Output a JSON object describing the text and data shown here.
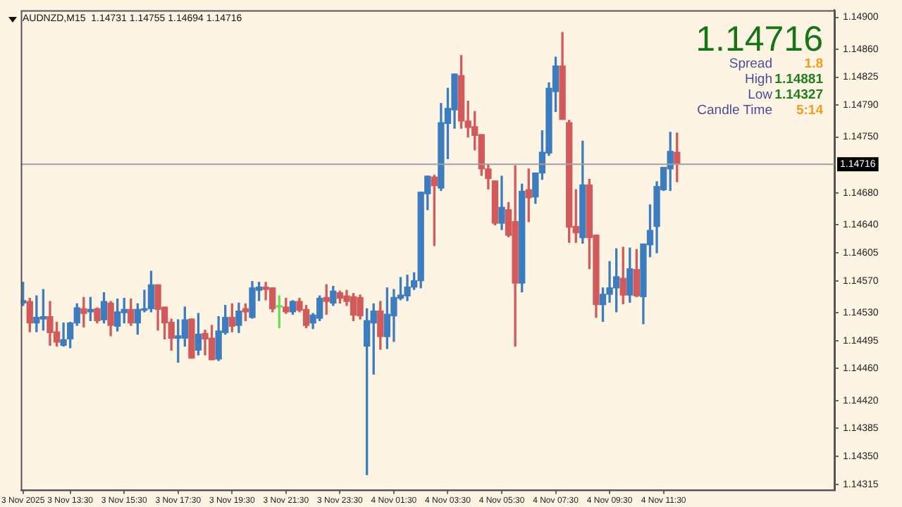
{
  "chart_data": {
    "type": "candlestick",
    "title": "AUDNZD,M15  1.14731 1.14755 1.14694 1.14716",
    "x": [
      "2025-11-03T11:45",
      "2025-11-03T12:00",
      "2025-11-03T12:15",
      "2025-11-03T12:30",
      "2025-11-03T12:45",
      "2025-11-03T13:00",
      "2025-11-03T13:15",
      "2025-11-03T13:30",
      "2025-11-03T13:45",
      "2025-11-03T14:00",
      "2025-11-03T14:15",
      "2025-11-03T14:30",
      "2025-11-03T14:45",
      "2025-11-03T15:00",
      "2025-11-03T15:15",
      "2025-11-03T15:30",
      "2025-11-03T15:45",
      "2025-11-03T16:00",
      "2025-11-03T16:15",
      "2025-11-03T16:30",
      "2025-11-03T16:45",
      "2025-11-03T17:00",
      "2025-11-03T17:15",
      "2025-11-03T17:30",
      "2025-11-03T17:45",
      "2025-11-03T18:00",
      "2025-11-03T18:15",
      "2025-11-03T18:30",
      "2025-11-03T18:45",
      "2025-11-03T19:00",
      "2025-11-03T19:15",
      "2025-11-03T19:30",
      "2025-11-03T19:45",
      "2025-11-03T20:00",
      "2025-11-03T20:15",
      "2025-11-03T20:30",
      "2025-11-03T20:45",
      "2025-11-03T21:00",
      "2025-11-03T21:15",
      "2025-11-03T21:30",
      "2025-11-03T21:45",
      "2025-11-03T22:00",
      "2025-11-03T22:15",
      "2025-11-03T22:30",
      "2025-11-03T22:45",
      "2025-11-03T23:00",
      "2025-11-03T23:15",
      "2025-11-03T23:30",
      "2025-11-03T23:45",
      "2025-11-04T00:00",
      "2025-11-04T00:15",
      "2025-11-04T00:30",
      "2025-11-04T00:45",
      "2025-11-04T01:00",
      "2025-11-04T01:15",
      "2025-11-04T01:30",
      "2025-11-04T01:45",
      "2025-11-04T02:00",
      "2025-11-04T02:15",
      "2025-11-04T02:30",
      "2025-11-04T02:45",
      "2025-11-04T03:00",
      "2025-11-04T03:15",
      "2025-11-04T03:30",
      "2025-11-04T03:45",
      "2025-11-04T04:00",
      "2025-11-04T04:15",
      "2025-11-04T04:30",
      "2025-11-04T04:45",
      "2025-11-04T05:00",
      "2025-11-04T05:15",
      "2025-11-04T05:30",
      "2025-11-04T05:45",
      "2025-11-04T06:00",
      "2025-11-04T06:15",
      "2025-11-04T06:30",
      "2025-11-04T06:45",
      "2025-11-04T07:00",
      "2025-11-04T07:15",
      "2025-11-04T07:30",
      "2025-11-04T07:45",
      "2025-11-04T08:00",
      "2025-11-04T08:15",
      "2025-11-04T08:30",
      "2025-11-04T08:45",
      "2025-11-04T09:00",
      "2025-11-04T09:15",
      "2025-11-04T09:30",
      "2025-11-04T09:45",
      "2025-11-04T10:00",
      "2025-11-04T10:15",
      "2025-11-04T10:30",
      "2025-11-04T10:45",
      "2025-11-04T11:00",
      "2025-11-04T11:15",
      "2025-11-04T11:30",
      "2025-11-04T11:45",
      "2025-11-04T12:00"
    ],
    "ohlc": [
      [
        1.14542,
        1.14568,
        1.14539,
        1.14545
      ],
      [
        1.14544,
        1.14548,
        1.14506,
        1.14517
      ],
      [
        1.14517,
        1.14551,
        1.14506,
        1.14524
      ],
      [
        1.14522,
        1.14559,
        1.14508,
        1.14525
      ],
      [
        1.14525,
        1.14544,
        1.14489,
        1.14505
      ],
      [
        1.14506,
        1.14518,
        1.14488,
        1.14493
      ],
      [
        1.14489,
        1.14517,
        1.14488,
        1.14496
      ],
      [
        1.14497,
        1.14518,
        1.14486,
        1.14517
      ],
      [
        1.14517,
        1.14541,
        1.14514,
        1.14536
      ],
      [
        1.14535,
        1.14549,
        1.14512,
        1.14529
      ],
      [
        1.14531,
        1.14549,
        1.1452,
        1.14534
      ],
      [
        1.14535,
        1.14536,
        1.14517,
        1.1452
      ],
      [
        1.14521,
        1.14555,
        1.14517,
        1.14544
      ],
      [
        1.14542,
        1.14544,
        1.14501,
        1.14514
      ],
      [
        1.14513,
        1.14547,
        1.14507,
        1.14531
      ],
      [
        1.1453,
        1.14548,
        1.14517,
        1.14534
      ],
      [
        1.14534,
        1.14547,
        1.14514,
        1.14517
      ],
      [
        1.14517,
        1.14541,
        1.14503,
        1.14534
      ],
      [
        1.14533,
        1.14558,
        1.14531,
        1.14535
      ],
      [
        1.14535,
        1.14582,
        1.14531,
        1.14565
      ],
      [
        1.14565,
        1.14565,
        1.14508,
        1.14534
      ],
      [
        1.14537,
        1.14537,
        1.14497,
        1.14517
      ],
      [
        1.14518,
        1.14522,
        1.14483,
        1.14498
      ],
      [
        1.14498,
        1.14521,
        1.14468,
        1.14501
      ],
      [
        1.14498,
        1.14537,
        1.14488,
        1.14521
      ],
      [
        1.14522,
        1.14522,
        1.14473,
        1.14473
      ],
      [
        1.14483,
        1.14529,
        1.14477,
        1.14503
      ],
      [
        1.14504,
        1.14508,
        1.14477,
        1.14497
      ],
      [
        1.14498,
        1.14514,
        1.14471,
        1.14471
      ],
      [
        1.14472,
        1.14525,
        1.1447,
        1.14507
      ],
      [
        1.14505,
        1.14539,
        1.14503,
        1.14524
      ],
      [
        1.14524,
        1.14541,
        1.14506,
        1.14513
      ],
      [
        1.14514,
        1.14542,
        1.14505,
        1.14532
      ],
      [
        1.14535,
        1.14541,
        1.1452,
        1.14531
      ],
      [
        1.14524,
        1.14569,
        1.14523,
        1.14561
      ],
      [
        1.14558,
        1.14568,
        1.14545,
        1.14562
      ],
      [
        1.14562,
        1.14568,
        1.14546,
        1.14559
      ],
      [
        1.14561,
        1.14561,
        1.14531,
        1.14535
      ],
      [
        1.14537,
        1.14551,
        1.14511,
        1.14537
      ],
      [
        1.14537,
        1.14548,
        1.14529,
        1.14531
      ],
      [
        1.14531,
        1.14545,
        1.14528,
        1.14544
      ],
      [
        1.14544,
        1.14548,
        1.14531,
        1.14533
      ],
      [
        1.14534,
        1.14539,
        1.14511,
        1.14514
      ],
      [
        1.14517,
        1.14529,
        1.1451,
        1.14527
      ],
      [
        1.14523,
        1.14551,
        1.1452,
        1.14548
      ],
      [
        1.14549,
        1.14565,
        1.14528,
        1.14544
      ],
      [
        1.14542,
        1.14563,
        1.14539,
        1.14557
      ],
      [
        1.14555,
        1.14557,
        1.14542,
        1.14548
      ],
      [
        1.14551,
        1.14558,
        1.14539,
        1.14544
      ],
      [
        1.1455,
        1.14554,
        1.1452,
        1.14527
      ],
      [
        1.14549,
        1.14552,
        1.14522,
        1.14526
      ],
      [
        1.14488,
        1.14535,
        1.14327,
        1.1452
      ],
      [
        1.14517,
        1.14541,
        1.14453,
        1.14532
      ],
      [
        1.14532,
        1.14544,
        1.14484,
        1.145
      ],
      [
        1.145,
        1.14561,
        1.14485,
        1.14528
      ],
      [
        1.14526,
        1.14559,
        1.14494,
        1.14549
      ],
      [
        1.14548,
        1.14574,
        1.14546,
        1.14552
      ],
      [
        1.14551,
        1.14577,
        1.14545,
        1.14562
      ],
      [
        1.14562,
        1.1458,
        1.14559,
        1.1457
      ],
      [
        1.1457,
        1.14681,
        1.14561,
        1.14681
      ],
      [
        1.14679,
        1.14701,
        1.14659,
        1.14701
      ],
      [
        1.147,
        1.14702,
        1.14614,
        1.14689
      ],
      [
        1.14686,
        1.14792,
        1.14683,
        1.14768
      ],
      [
        1.14767,
        1.14811,
        1.14723,
        1.14786
      ],
      [
        1.14784,
        1.14829,
        1.14761,
        1.14829
      ],
      [
        1.14827,
        1.14852,
        1.14761,
        1.1477
      ],
      [
        1.1477,
        1.14795,
        1.1475,
        1.14762
      ],
      [
        1.14763,
        1.14782,
        1.14734,
        1.14752
      ],
      [
        1.14753,
        1.14753,
        1.14702,
        1.1471
      ],
      [
        1.1471,
        1.14715,
        1.14685,
        1.14698
      ],
      [
        1.14695,
        1.14695,
        1.1464,
        1.14642
      ],
      [
        1.14642,
        1.14701,
        1.14634,
        1.14662
      ],
      [
        1.14659,
        1.14668,
        1.14625,
        1.14627
      ],
      [
        1.14644,
        1.14714,
        1.14488,
        1.14567
      ],
      [
        1.14567,
        1.14691,
        1.14556,
        1.14682
      ],
      [
        1.14684,
        1.1471,
        1.14644,
        1.14674
      ],
      [
        1.14675,
        1.14705,
        1.14667,
        1.14705
      ],
      [
        1.14705,
        1.14758,
        1.14697,
        1.14731
      ],
      [
        1.1473,
        1.14818,
        1.14727,
        1.14811
      ],
      [
        1.14807,
        1.1485,
        1.14782,
        1.14839
      ],
      [
        1.14839,
        1.14881,
        1.14772,
        1.14772
      ],
      [
        1.14768,
        1.14771,
        1.14618,
        1.14637
      ],
      [
        1.14638,
        1.14684,
        1.14618,
        1.1463
      ],
      [
        1.14624,
        1.14745,
        1.14617,
        1.1469
      ],
      [
        1.1469,
        1.14697,
        1.14585,
        1.14624
      ],
      [
        1.14627,
        1.14627,
        1.14524,
        1.1454
      ],
      [
        1.1454,
        1.14561,
        1.14519,
        1.14553
      ],
      [
        1.14553,
        1.14594,
        1.14543,
        1.14561
      ],
      [
        1.14561,
        1.1461,
        1.14531,
        1.14575
      ],
      [
        1.14573,
        1.14612,
        1.14541,
        1.14552
      ],
      [
        1.14552,
        1.14611,
        1.14543,
        1.14585
      ],
      [
        1.14584,
        1.14609,
        1.1455,
        1.14551
      ],
      [
        1.1455,
        1.14616,
        1.14516,
        1.14616
      ],
      [
        1.14615,
        1.14665,
        1.146,
        1.14633
      ],
      [
        1.14638,
        1.14694,
        1.14605,
        1.14688
      ],
      [
        1.14684,
        1.14712,
        1.14683,
        1.14712
      ],
      [
        1.1471,
        1.14756,
        1.14683,
        1.14732
      ],
      [
        1.14731,
        1.14755,
        1.14694,
        1.14716
      ]
    ],
    "colors": [
      "#3d7dbf",
      "#d25a5a",
      "#3d7dbf",
      "#3d7dbf",
      "#d25a5a",
      "#d25a5a",
      "#3d7dbf",
      "#3d7dbf",
      "#3d7dbf",
      "#d25a5a",
      "#3d7dbf",
      "#d25a5a",
      "#3d7dbf",
      "#d25a5a",
      "#3d7dbf",
      "#3d7dbf",
      "#d25a5a",
      "#3d7dbf",
      "#3d7dbf",
      "#3d7dbf",
      "#d25a5a",
      "#d25a5a",
      "#d25a5a",
      "#3d7dbf",
      "#3d7dbf",
      "#d25a5a",
      "#3d7dbf",
      "#d25a5a",
      "#d25a5a",
      "#3d7dbf",
      "#3d7dbf",
      "#d25a5a",
      "#3d7dbf",
      "#d25a5a",
      "#3d7dbf",
      "#3d7dbf",
      "#d25a5a",
      "#d25a5a",
      "#66dd55",
      "#d25a5a",
      "#3d7dbf",
      "#d25a5a",
      "#d25a5a",
      "#3d7dbf",
      "#3d7dbf",
      "#d25a5a",
      "#3d7dbf",
      "#d25a5a",
      "#d25a5a",
      "#d25a5a",
      "#d25a5a",
      "#3d7dbf",
      "#3d7dbf",
      "#d25a5a",
      "#3d7dbf",
      "#3d7dbf",
      "#3d7dbf",
      "#3d7dbf",
      "#3d7dbf",
      "#3d7dbf",
      "#3d7dbf",
      "#d25a5a",
      "#3d7dbf",
      "#3d7dbf",
      "#3d7dbf",
      "#d25a5a",
      "#d25a5a",
      "#d25a5a",
      "#d25a5a",
      "#d25a5a",
      "#d25a5a",
      "#3d7dbf",
      "#d25a5a",
      "#d25a5a",
      "#3d7dbf",
      "#d25a5a",
      "#3d7dbf",
      "#3d7dbf",
      "#3d7dbf",
      "#3d7dbf",
      "#d25a5a",
      "#d25a5a",
      "#d25a5a",
      "#3d7dbf",
      "#d25a5a",
      "#d25a5a",
      "#3d7dbf",
      "#3d7dbf",
      "#3d7dbf",
      "#d25a5a",
      "#3d7dbf",
      "#d25a5a",
      "#3d7dbf",
      "#3d7dbf",
      "#3d7dbf",
      "#3d7dbf",
      "#3d7dbf",
      "#d25a5a"
    ],
    "xlim": [
      "2025-11-03T11:40",
      "2025-11-04T17:50"
    ],
    "xticks": [
      {
        "value": "2025-11-03T11:45",
        "label": "3 Nov 2025"
      },
      {
        "value": "2025-11-03T13:30",
        "label": "3 Nov 13:30"
      },
      {
        "value": "2025-11-03T15:30",
        "label": "3 Nov 15:30"
      },
      {
        "value": "2025-11-03T17:30",
        "label": "3 Nov 17:30"
      },
      {
        "value": "2025-11-03T19:30",
        "label": "3 Nov 19:30"
      },
      {
        "value": "2025-11-03T21:30",
        "label": "3 Nov 21:30"
      },
      {
        "value": "2025-11-03T23:30",
        "label": "3 Nov 23:30"
      },
      {
        "value": "2025-11-04T01:30",
        "label": "4 Nov 01:30"
      },
      {
        "value": "2025-11-04T03:30",
        "label": "4 Nov 03:30"
      },
      {
        "value": "2025-11-04T05:30",
        "label": "4 Nov 05:30"
      },
      {
        "value": "2025-11-04T07:30",
        "label": "4 Nov 07:30"
      },
      {
        "value": "2025-11-04T09:30",
        "label": "4 Nov 09:30"
      },
      {
        "value": "2025-11-04T11:30",
        "label": "4 Nov 11:30"
      }
    ],
    "ylim": [
      1.14308,
      1.14909
    ],
    "yticks": [
      {
        "value": 1.149,
        "label": "1.14900"
      },
      {
        "value": 1.1486,
        "label": "1.14860"
      },
      {
        "value": 1.14825,
        "label": "1.14825"
      },
      {
        "value": 1.1479,
        "label": "1.14790"
      },
      {
        "value": 1.1475,
        "label": "1.14750"
      },
      {
        "value": 1.1468,
        "label": "1.14680"
      },
      {
        "value": 1.1464,
        "label": "1.14640"
      },
      {
        "value": 1.14605,
        "label": "1.14605"
      },
      {
        "value": 1.1457,
        "label": "1.14570"
      },
      {
        "value": 1.1453,
        "label": "1.14530"
      },
      {
        "value": 1.14495,
        "label": "1.14495"
      },
      {
        "value": 1.1446,
        "label": "1.14460"
      },
      {
        "value": 1.1442,
        "label": "1.14420"
      },
      {
        "value": 1.14385,
        "label": "1.14385"
      },
      {
        "value": 1.1435,
        "label": "1.14350"
      },
      {
        "value": 1.14315,
        "label": "1.14315"
      }
    ],
    "ref_lines": [
      {
        "axis": "y",
        "value": 1.14716,
        "label": "1.14716",
        "color": "#a0a0a0"
      }
    ],
    "annotations": [
      "1.14716",
      "Spread 1.8",
      "High 1.14881",
      "Low 1.14327",
      "Candle Time 5:14"
    ]
  }
}
